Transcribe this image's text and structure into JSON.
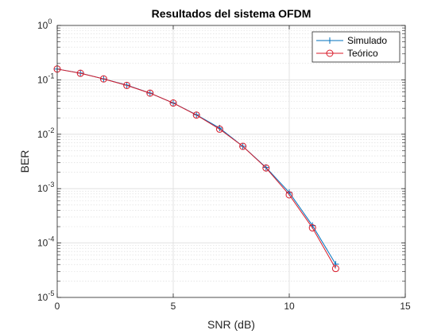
{
  "chart_data": {
    "type": "line",
    "title": "Resultados del sistema OFDM",
    "xlabel": "SNR (dB)",
    "ylabel": "BER",
    "xlim": [
      0,
      15
    ],
    "ylim": [
      1e-05,
      1
    ],
    "yscale": "log",
    "grid": true,
    "minor_grid": true,
    "legend_position": "top-right",
    "x_ticks": [
      "0",
      "5",
      "10",
      "15"
    ],
    "y_ticks": [
      {
        "base": "10",
        "exp": "0"
      },
      {
        "base": "10",
        "exp": "-1"
      },
      {
        "base": "10",
        "exp": "-2"
      },
      {
        "base": "10",
        "exp": "-3"
      },
      {
        "base": "10",
        "exp": "-4"
      },
      {
        "base": "10",
        "exp": "-5"
      }
    ],
    "x": [
      0,
      1,
      2,
      3,
      4,
      5,
      6,
      7,
      8,
      9,
      10,
      11,
      12
    ],
    "series": [
      {
        "name": "Simulado",
        "color": "#0072BD",
        "marker": "plus",
        "values": [
          0.158,
          0.133,
          0.104,
          0.08,
          0.057,
          0.0375,
          0.0228,
          0.013,
          0.006,
          0.00245,
          0.00085,
          0.00021,
          4.1e-05
        ]
      },
      {
        "name": "Teórico",
        "color": "#D81B2A",
        "marker": "circle",
        "values": [
          0.158,
          0.132,
          0.104,
          0.079,
          0.057,
          0.0375,
          0.0225,
          0.0124,
          0.006,
          0.0024,
          0.00077,
          0.00019,
          3.4e-05
        ]
      }
    ]
  }
}
